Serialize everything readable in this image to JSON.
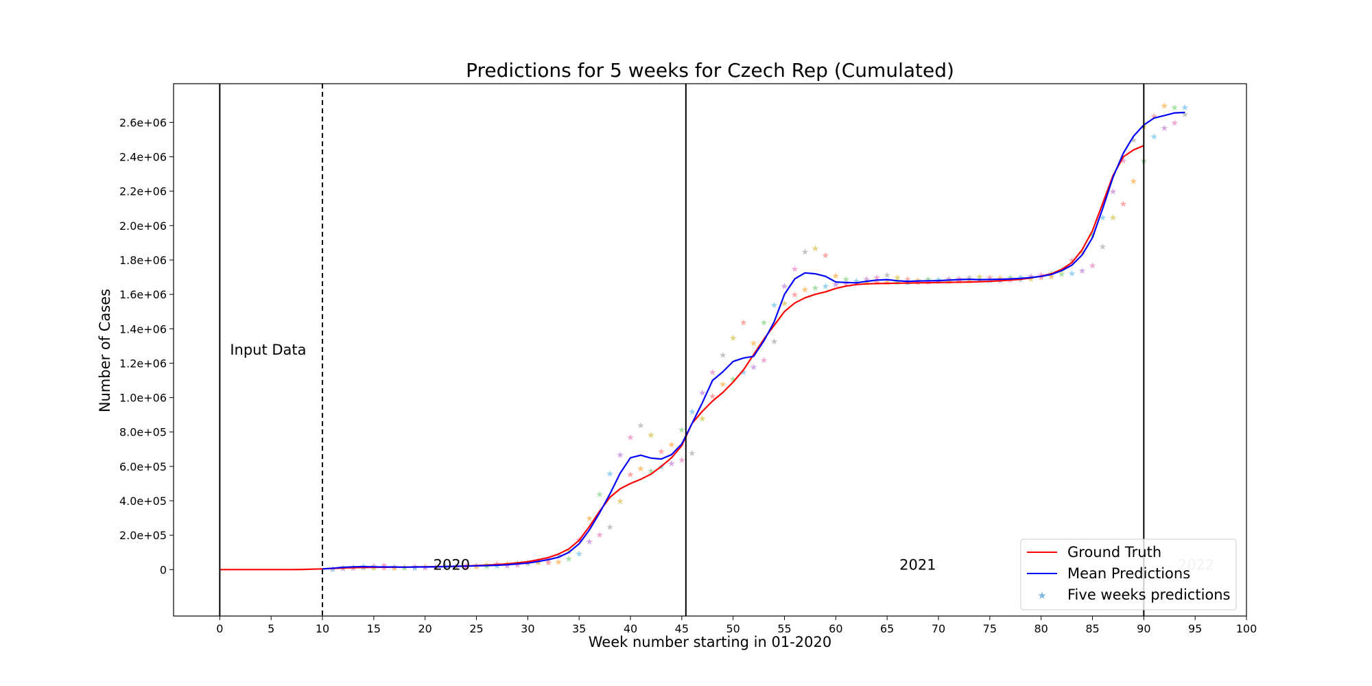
{
  "chart_data": {
    "type": "line",
    "title": "Predictions for 5 weeks for Czech Rep (Cumulated)",
    "xlabel": "Week number starting in 01-2020",
    "ylabel": "Number of Cases",
    "xlim": [
      -4.5,
      100
    ],
    "ylim": [
      -270000,
      2825000
    ],
    "x_ticks": [
      0,
      5,
      10,
      15,
      20,
      25,
      30,
      35,
      40,
      45,
      50,
      55,
      60,
      65,
      70,
      75,
      80,
      85,
      90,
      95,
      100
    ],
    "x_tick_labels": [
      "0",
      "5",
      "10",
      "15",
      "20",
      "25",
      "30",
      "35",
      "40",
      "45",
      "50",
      "55",
      "60",
      "65",
      "70",
      "75",
      "80",
      "85",
      "90",
      "95",
      "100"
    ],
    "y_ticks": [
      0,
      200000,
      400000,
      600000,
      800000,
      1000000,
      1200000,
      1400000,
      1600000,
      1800000,
      2000000,
      2200000,
      2400000,
      2600000
    ],
    "y_tick_labels": [
      "0",
      "2.0e+05",
      "4.0e+05",
      "6.0e+05",
      "8.0e+05",
      "1.0e+06",
      "1.2e+06",
      "1.4e+06",
      "1.6e+06",
      "1.8e+06",
      "2.0e+06",
      "2.2e+06",
      "2.4e+06",
      "2.6e+06"
    ],
    "grid": false,
    "legend_position": "bottom-right",
    "vertical_lines": [
      {
        "x": 0,
        "style": "solid"
      },
      {
        "x": 10,
        "style": "dashed"
      },
      {
        "x": 45.4,
        "style": "solid"
      },
      {
        "x": 90,
        "style": "solid"
      }
    ],
    "annotations": [
      {
        "text": "Input Data",
        "x": 1,
        "y": 1250000
      },
      {
        "text": "2020",
        "x": 20.8,
        "y": 0
      },
      {
        "text": "2021",
        "x": 66.2,
        "y": 0
      },
      {
        "text": "2022",
        "x": 93.3,
        "y": 0
      }
    ],
    "series": [
      {
        "name": "Ground Truth",
        "color": "#ff0000",
        "style": "line",
        "x": [
          0,
          1,
          2,
          3,
          4,
          5,
          6,
          7,
          8,
          9,
          10,
          11,
          12,
          13,
          14,
          15,
          16,
          17,
          18,
          19,
          20,
          21,
          22,
          23,
          24,
          25,
          26,
          27,
          28,
          29,
          30,
          31,
          32,
          33,
          34,
          35,
          36,
          37,
          38,
          39,
          40,
          41,
          42,
          43,
          44,
          45,
          46,
          47,
          48,
          49,
          50,
          51,
          52,
          53,
          54,
          55,
          56,
          57,
          58,
          59,
          60,
          61,
          62,
          63,
          64,
          65,
          66,
          67,
          68,
          69,
          70,
          71,
          72,
          73,
          74,
          75,
          76,
          77,
          78,
          79,
          80,
          81,
          82,
          83,
          84,
          85,
          86,
          87,
          88,
          89,
          90
        ],
        "y": [
          0,
          0,
          0,
          0,
          0,
          0,
          0,
          0,
          1000,
          2500,
          4000,
          6500,
          9000,
          11000,
          12000,
          13000,
          13500,
          14000,
          14500,
          15000,
          16000,
          17000,
          18000,
          19000,
          21000,
          23000,
          26000,
          29000,
          33000,
          39000,
          46000,
          57000,
          70000,
          90000,
          120000,
          170000,
          250000,
          340000,
          420000,
          470000,
          500000,
          525000,
          555000,
          600000,
          650000,
          720000,
          850000,
          920000,
          980000,
          1030000,
          1090000,
          1160000,
          1250000,
          1340000,
          1420000,
          1500000,
          1550000,
          1580000,
          1600000,
          1615000,
          1635000,
          1648000,
          1657000,
          1661000,
          1663000,
          1664000,
          1665000,
          1666000,
          1667000,
          1668000,
          1669000,
          1670000,
          1671000,
          1672000,
          1674000,
          1676000,
          1679000,
          1683000,
          1688000,
          1696000,
          1706000,
          1720000,
          1745000,
          1785000,
          1860000,
          1970000,
          2130000,
          2290000,
          2400000,
          2440000,
          2465000
        ]
      },
      {
        "name": "Mean Predictions",
        "color": "#0000ff",
        "style": "line",
        "x": [
          10,
          11,
          12,
          13,
          14,
          15,
          16,
          17,
          18,
          19,
          20,
          21,
          22,
          23,
          24,
          25,
          26,
          27,
          28,
          29,
          30,
          31,
          32,
          33,
          34,
          35,
          36,
          37,
          38,
          39,
          40,
          41,
          42,
          43,
          44,
          45,
          46,
          47,
          48,
          49,
          50,
          51,
          52,
          53,
          54,
          55,
          56,
          57,
          58,
          59,
          60,
          61,
          62,
          63,
          64,
          65,
          66,
          67,
          68,
          69,
          70,
          71,
          72,
          73,
          74,
          75,
          76,
          77,
          78,
          79,
          80,
          81,
          82,
          83,
          84,
          85,
          86,
          87,
          88,
          89,
          90,
          91,
          92,
          93,
          94
        ],
        "y": [
          4000,
          8000,
          13000,
          16000,
          17000,
          16000,
          15000,
          15000,
          14000,
          15000,
          15000,
          16000,
          17000,
          19000,
          20000,
          22000,
          23000,
          25000,
          28000,
          33000,
          38000,
          47000,
          58000,
          72000,
          100000,
          150000,
          230000,
          330000,
          440000,
          560000,
          650000,
          665000,
          648000,
          643000,
          668000,
          730000,
          850000,
          970000,
          1100000,
          1150000,
          1210000,
          1230000,
          1240000,
          1330000,
          1440000,
          1600000,
          1690000,
          1725000,
          1720000,
          1705000,
          1672000,
          1669000,
          1667000,
          1676000,
          1683000,
          1686000,
          1679000,
          1676000,
          1678000,
          1679000,
          1680000,
          1683000,
          1686000,
          1688000,
          1686000,
          1687000,
          1688000,
          1690000,
          1693000,
          1698000,
          1705000,
          1716000,
          1738000,
          1770000,
          1830000,
          1930000,
          2100000,
          2280000,
          2420000,
          2520000,
          2585000,
          2625000,
          2640000,
          2655000,
          2658000
        ]
      },
      {
        "name": "Five weeks predictions",
        "color": "#1f77b4",
        "style": "markers"
      }
    ],
    "scatter_stars": {
      "x": [
        11,
        12,
        13,
        14,
        15,
        16,
        17,
        18,
        19,
        20,
        21,
        22,
        23,
        24,
        25,
        26,
        27,
        28,
        29,
        30,
        31,
        32,
        33,
        34,
        35,
        36,
        37,
        38,
        39,
        40,
        41,
        42,
        43,
        44,
        45,
        46,
        47,
        48,
        49,
        50,
        51,
        52,
        53,
        54,
        55,
        56,
        57,
        58,
        59,
        60,
        61,
        62,
        63,
        64,
        65,
        66,
        67,
        68,
        69,
        70,
        71,
        72,
        73,
        74,
        75,
        76,
        77,
        78,
        79,
        80,
        81,
        82,
        83,
        84,
        85,
        86,
        87,
        88,
        89,
        90,
        91,
        92,
        93,
        94
      ],
      "y": [
        [
          8000,
          4000
        ],
        [
          14000,
          9000
        ],
        [
          16000,
          11000
        ],
        [
          21000,
          13000
        ],
        [
          24000,
          12000
        ],
        [
          27000,
          14000
        ],
        [
          20000,
          12000
        ],
        [
          17000,
          14000
        ],
        [
          19000,
          12000
        ],
        [
          20000,
          13000
        ],
        [
          17000,
          15000
        ],
        [
          21000,
          16000
        ],
        [
          22000,
          17000
        ],
        [
          25000,
          18000
        ],
        [
          28000,
          20000
        ],
        [
          32000,
          22000
        ],
        [
          35000,
          23000
        ],
        [
          38000,
          26000
        ],
        [
          42000,
          30000
        ],
        [
          45000,
          37000
        ],
        [
          52000,
          44000
        ],
        [
          60000,
          44000
        ],
        [
          85000,
          48000
        ],
        [
          110000,
          65000
        ],
        [
          175000,
          95000
        ],
        [
          300000,
          165000
        ],
        [
          440000,
          205000
        ],
        [
          560000,
          250000
        ],
        [
          670000,
          400000
        ],
        [
          770000,
          555000
        ],
        [
          840000,
          590000
        ],
        [
          785000,
          575000
        ],
        [
          690000,
          600000
        ],
        [
          730000,
          620000
        ],
        [
          815000,
          640000
        ],
        [
          920000,
          680000
        ],
        [
          1030000,
          880000
        ],
        [
          1150000,
          1010000
        ],
        [
          1250000,
          1080000
        ],
        [
          1350000,
          1110000
        ],
        [
          1440000,
          1150000
        ],
        [
          1320000,
          1180000
        ],
        [
          1440000,
          1220000
        ],
        [
          1540000,
          1330000
        ],
        [
          1650000,
          1550000
        ],
        [
          1750000,
          1600000
        ],
        [
          1850000,
          1630000
        ],
        [
          1870000,
          1640000
        ],
        [
          1830000,
          1650000
        ],
        [
          1710000,
          1660000
        ],
        [
          1690000,
          1665000
        ],
        [
          1680000,
          1668000
        ],
        [
          1690000,
          1670000
        ],
        [
          1700000,
          1672000
        ],
        [
          1715000,
          1675000
        ],
        [
          1700000,
          1673000
        ],
        [
          1690000,
          1671000
        ],
        [
          1685000,
          1672000
        ],
        [
          1690000,
          1674000
        ],
        [
          1688000,
          1676000
        ],
        [
          1692000,
          1678000
        ],
        [
          1695000,
          1680000
        ],
        [
          1700000,
          1682000
        ],
        [
          1705000,
          1684000
        ],
        [
          1700000,
          1682000
        ],
        [
          1698000,
          1683000
        ],
        [
          1700000,
          1686000
        ],
        [
          1703000,
          1689000
        ],
        [
          1708000,
          1693000
        ],
        [
          1716000,
          1700000
        ],
        [
          1724000,
          1706000
        ],
        [
          1745000,
          1720000
        ],
        [
          1800000,
          1725000
        ],
        [
          1850000,
          1740000
        ],
        [
          1950000,
          1770000
        ],
        [
          2050000,
          1880000
        ],
        [
          2200000,
          2050000
        ],
        [
          2380000,
          2130000
        ],
        [
          2500000,
          2260000
        ],
        [
          2580000,
          2380000
        ],
        [
          2640000,
          2520000
        ],
        [
          2700000,
          2570000
        ],
        [
          2690000,
          2600000
        ],
        [
          2690000,
          2650000
        ]
      ]
    },
    "scatter_palette": [
      "#ff9999",
      "#ffbb66",
      "#99dd99",
      "#88ccee",
      "#cc99dd",
      "#ee99cc",
      "#bbbbbb",
      "#ddcc66"
    ]
  }
}
